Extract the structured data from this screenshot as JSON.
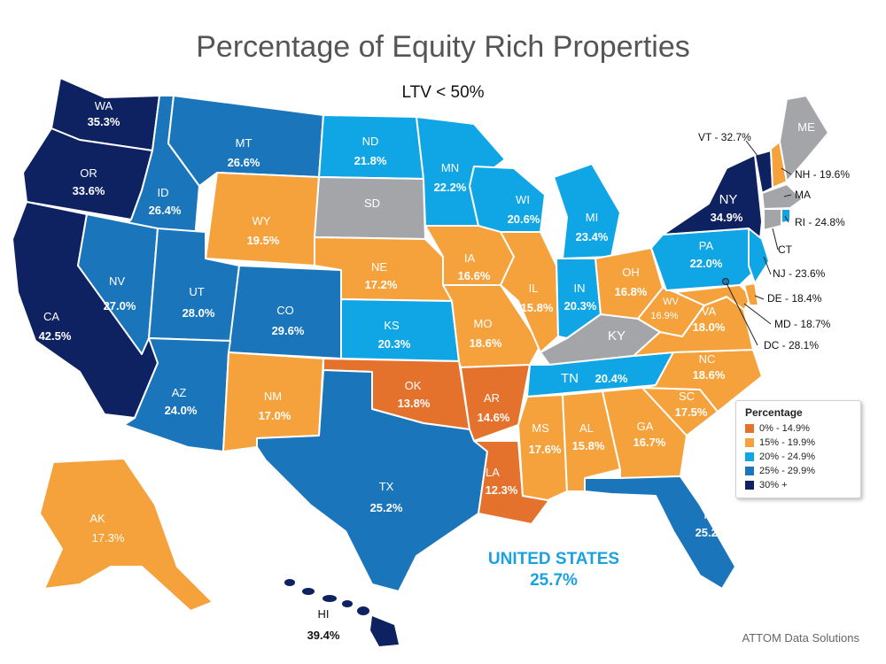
{
  "title": "Percentage of Equity Rich Properties",
  "subtitle": "LTV < 50%",
  "us_total": {
    "label": "UNITED STATES",
    "value": "25.7%"
  },
  "source": "ATTOM Data Solutions",
  "colors": {
    "0-14.9": "#e5722c",
    "15-19.9": "#f5a23c",
    "20-24.9": "#10a6e6",
    "25-29.9": "#1b75bb",
    "30+": "#0e2161",
    "no_data": "#a3a5a8"
  },
  "legend": {
    "title": "Percentage",
    "items": [
      {
        "label": "0% - 14.9%",
        "color": "#e5722c"
      },
      {
        "label": "15% - 19.9%",
        "color": "#f5a23c"
      },
      {
        "label": "20% - 24.9%",
        "color": "#10a6e6"
      },
      {
        "label": "25% - 29.9%",
        "color": "#1b75bb"
      },
      {
        "label": "30% +",
        "color": "#0e2161"
      }
    ]
  },
  "states": {
    "WA": "35.3%",
    "OR": "33.6%",
    "CA": "42.5%",
    "ID": "26.4%",
    "NV": "27.0%",
    "MT": "26.6%",
    "WY": "19.5%",
    "UT": "28.0%",
    "CO": "29.6%",
    "AZ": "24.0%",
    "NM": "17.0%",
    "ND": "21.8%",
    "SD": "",
    "NE": "17.2%",
    "KS": "20.3%",
    "OK": "13.8%",
    "TX": "25.2%",
    "MN": "22.2%",
    "IA": "16.6%",
    "MO": "18.6%",
    "AR": "14.6%",
    "LA": "12.3%",
    "WI": "20.6%",
    "IL": "15.8%",
    "MI": "23.4%",
    "IN": "20.3%",
    "OH": "16.8%",
    "KY": "",
    "TN": "20.4%",
    "MS": "17.6%",
    "AL": "15.8%",
    "GA": "16.7%",
    "FL": "25.2%",
    "SC": "17.5%",
    "NC": "18.6%",
    "VA": "18.0%",
    "WV": "16.9%",
    "PA": "22.0%",
    "NY": "34.9%",
    "ME": "",
    "AK": "17.3%",
    "HI": "39.4%"
  },
  "callouts": {
    "VT": "VT - 32.7%",
    "NH": "NH - 19.6%",
    "MA": "MA",
    "RI": "RI - 24.8%",
    "CT": "CT",
    "NJ": "NJ - 23.6%",
    "DE": "DE - 18.4%",
    "MD": "MD - 18.7%",
    "DC": "DC - 28.1%"
  }
}
